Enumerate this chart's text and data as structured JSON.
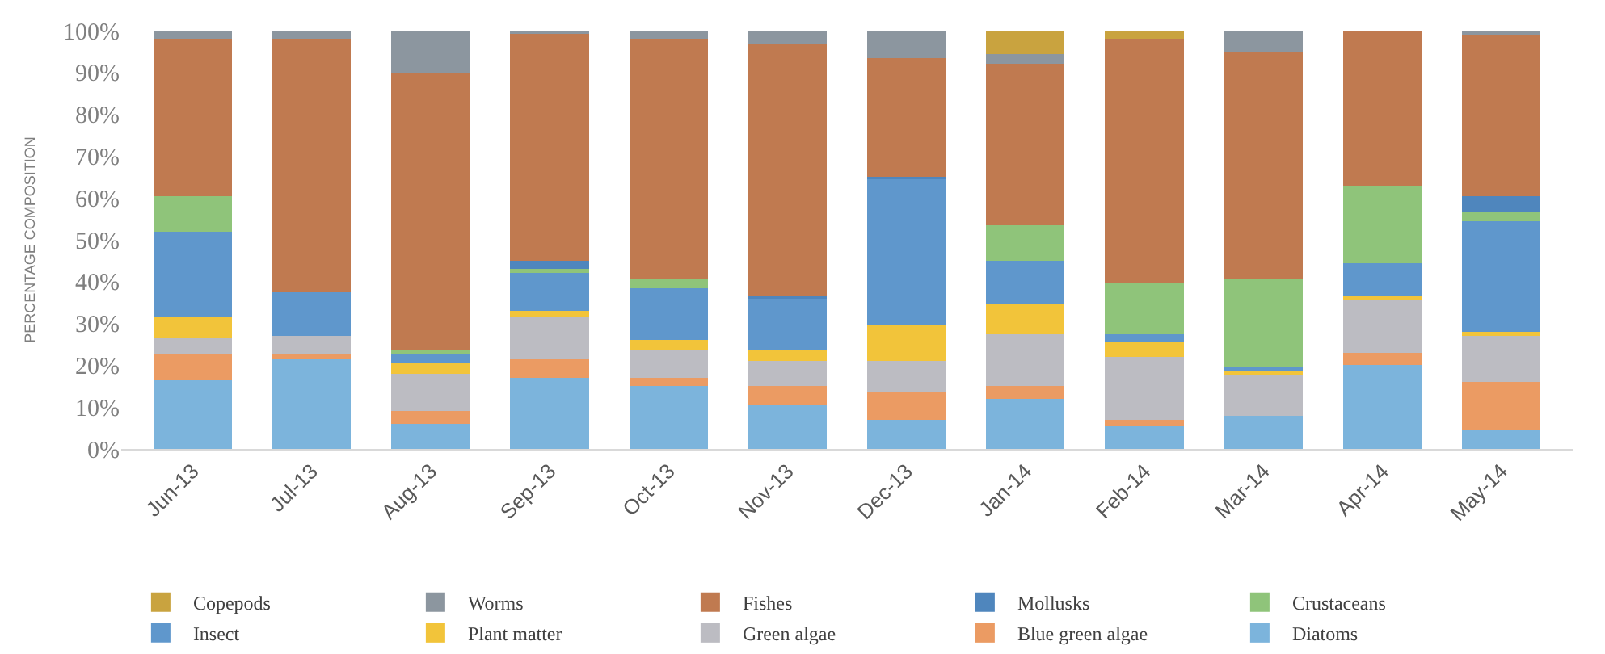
{
  "chart_data": {
    "type": "bar",
    "stacked": true,
    "ylabel": "PERCENTAGE COMPOSITION",
    "categories": [
      "Jun-13",
      "Jul-13",
      "Aug-13",
      "Sep-13",
      "Oct-13",
      "Nov-13",
      "Dec-13",
      "Jan-14",
      "Feb-14",
      "Mar-14",
      "Apr-14",
      "May-14"
    ],
    "series": [
      {
        "name": "Diatoms",
        "color": "#7cb4dc",
        "values": [
          16.5,
          21.5,
          6,
          17,
          15,
          10.5,
          7,
          12,
          5.5,
          8,
          20,
          4.5
        ]
      },
      {
        "name": "Blue green algae",
        "color": "#eb9b63",
        "values": [
          6,
          1,
          3,
          4.5,
          2,
          4.5,
          6.5,
          3,
          1.5,
          0,
          3,
          11.5
        ]
      },
      {
        "name": "Green algae",
        "color": "#bcbcc2",
        "values": [
          4,
          4.5,
          9,
          10,
          6.5,
          6,
          7.5,
          12.5,
          15,
          10,
          12.5,
          11
        ]
      },
      {
        "name": "Plant matter",
        "color": "#f2c43a",
        "values": [
          5,
          0,
          2.5,
          1.5,
          2.5,
          2.5,
          8.5,
          7,
          3.5,
          0.5,
          1,
          1
        ]
      },
      {
        "name": "Insect",
        "color": "#5f97cc",
        "values": [
          20.5,
          10.5,
          2,
          9,
          12.5,
          12.5,
          35,
          10.5,
          2,
          1,
          8,
          26.5
        ]
      },
      {
        "name": "Crustaceans",
        "color": "#8fc47a",
        "values": [
          8.5,
          0,
          1,
          1,
          2,
          0,
          0,
          8.5,
          12,
          21,
          18.5,
          2
        ]
      },
      {
        "name": "Mollusks",
        "color": "#4f86bd",
        "values": [
          0,
          0,
          0,
          2,
          0,
          0.5,
          0.5,
          0,
          0,
          0,
          0,
          4
        ]
      },
      {
        "name": "Fishes",
        "color": "#c07a50",
        "values": [
          37.5,
          60.5,
          66.5,
          54.5,
          57.5,
          60.5,
          28.5,
          38.5,
          58.5,
          54.5,
          37,
          38.5
        ]
      },
      {
        "name": "Worms",
        "color": "#8c969f",
        "values": [
          2,
          2,
          10,
          0.5,
          2,
          3,
          6.5,
          2.5,
          0,
          5,
          0,
          1
        ]
      },
      {
        "name": "Copepods",
        "color": "#c9a33f",
        "values": [
          0,
          0,
          0,
          0,
          0,
          0,
          0,
          5.5,
          2,
          0,
          0,
          0
        ]
      }
    ],
    "ylim": [
      0,
      100
    ],
    "yticks": [
      {
        "value": 0,
        "label": "0%"
      },
      {
        "value": 10,
        "label": "10%"
      },
      {
        "value": 20,
        "label": "20%"
      },
      {
        "value": 30,
        "label": "30%"
      },
      {
        "value": 40,
        "label": "40%"
      },
      {
        "value": 50,
        "label": "50%"
      },
      {
        "value": 60,
        "label": "60%"
      },
      {
        "value": 70,
        "label": "70%"
      },
      {
        "value": 80,
        "label": "80%"
      },
      {
        "value": 90,
        "label": "90%"
      },
      {
        "value": 100,
        "label": "100%"
      }
    ],
    "legend": "bottom"
  }
}
